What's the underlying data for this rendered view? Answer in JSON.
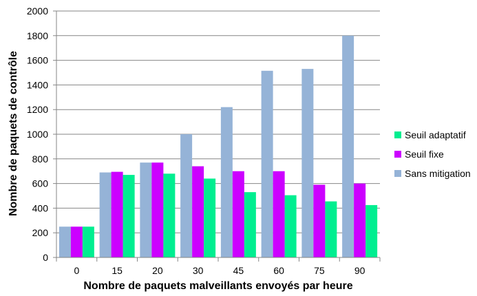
{
  "chart_data": {
    "type": "bar",
    "xlabel": "Nombre de paquets malveillants envoyés par heure",
    "ylabel": "Nombre de paquets de contrôle",
    "ylim": [
      0,
      2000
    ],
    "yticks": [
      0,
      200,
      400,
      600,
      800,
      1000,
      1200,
      1400,
      1600,
      1800,
      2000
    ],
    "grid": true,
    "legend_position": "right",
    "categories": [
      "0",
      "15",
      "20",
      "30",
      "45",
      "60",
      "75",
      "90"
    ],
    "series": [
      {
        "name": "Sans mitigation",
        "color": "#95b3d7",
        "values": [
          250,
          690,
          770,
          1000,
          1220,
          1515,
          1530,
          1800
        ]
      },
      {
        "name": "Seuil fixe",
        "color": "#cc00ff",
        "values": [
          250,
          695,
          770,
          740,
          700,
          700,
          590,
          600
        ]
      },
      {
        "name": "Seuil adaptatif",
        "color": "#00ee90",
        "values": [
          250,
          670,
          680,
          640,
          530,
          505,
          455,
          425
        ]
      }
    ],
    "legend_order": [
      "Seuil adaptatif",
      "Seuil fixe",
      "Sans mitigation"
    ]
  }
}
